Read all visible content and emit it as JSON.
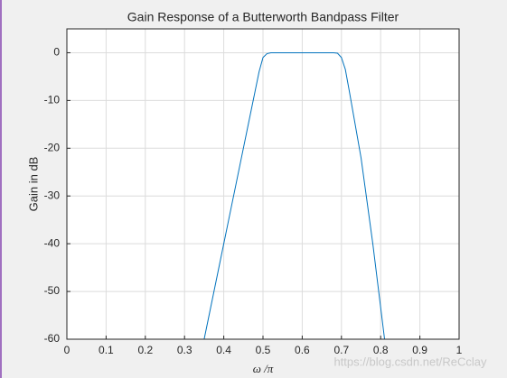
{
  "chart_data": {
    "type": "line",
    "title": "Gain Response of a Butterworth Bandpass Filter",
    "x_label": "ω /π",
    "y_label": "Gain in dB",
    "x": [
      0.35,
      0.4,
      0.45,
      0.47,
      0.48,
      0.49,
      0.5,
      0.51,
      0.52,
      0.6,
      0.68,
      0.69,
      0.7,
      0.71,
      0.72,
      0.75,
      0.78,
      0.81
    ],
    "series": [
      {
        "name": "Gain",
        "color": "#0072bd",
        "values": [
          -60,
          -40,
          -20,
          -12,
          -8,
          -4,
          -1,
          -0.2,
          0,
          0,
          0,
          -0.1,
          -1,
          -3.5,
          -8,
          -22,
          -40,
          -60
        ]
      }
    ],
    "xlim": [
      0,
      1
    ],
    "xticks": [
      0,
      0.1,
      0.2,
      0.3,
      0.4,
      0.5,
      0.6,
      0.7,
      0.8,
      0.9,
      1
    ],
    "ylim": [
      -60,
      5
    ],
    "yticks": [
      0,
      -10,
      -20,
      -30,
      -40,
      -50,
      -60
    ],
    "grid": true,
    "watermark": "https://blog.csdn.net/ReCclay"
  }
}
